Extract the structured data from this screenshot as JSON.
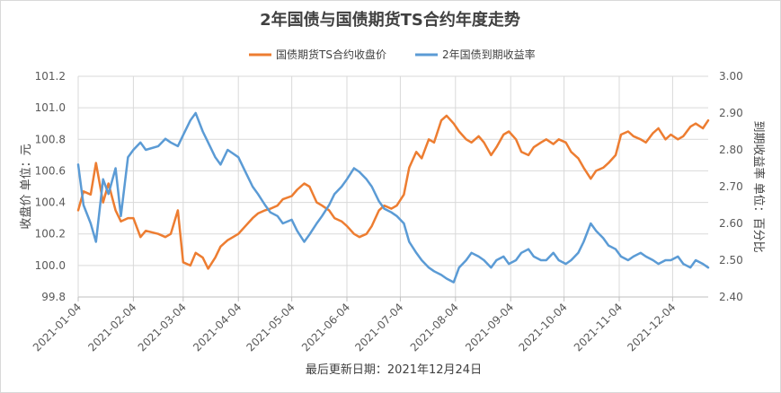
{
  "chart_data": {
    "type": "line",
    "title": "2年国债与国债期货TS合约年度走势",
    "footer": "最后更新日期：2021年12月24日",
    "ylabel_left": "收盘价 单位：元",
    "ylabel_right": "到期收益率 单位：百分比",
    "legend_placement": "top-center",
    "grid": true,
    "xlim": [
      "2021-01-04",
      "2021-12-24"
    ],
    "ylim_left": [
      99.8,
      101.2
    ],
    "ylim_right": [
      2.4,
      3.0
    ],
    "x_ticks": [
      "2021-01-04",
      "2021-02-04",
      "2021-03-04",
      "2021-04-04",
      "2021-05-04",
      "2021-06-04",
      "2021-07-04",
      "2021-08-04",
      "2021-09-04",
      "2021-10-04",
      "2021-11-04",
      "2021-12-04"
    ],
    "y_ticks_left": [
      "99.8",
      "100.0",
      "100.2",
      "100.4",
      "100.6",
      "100.8",
      "101.0",
      "101.2"
    ],
    "y_ticks_right": [
      "2.40",
      "2.50",
      "2.60",
      "2.70",
      "2.80",
      "2.90",
      "3.00"
    ],
    "series": [
      {
        "name": "国债期货TS合约收盘价",
        "axis": "left",
        "color": "#ED7D31",
        "points": [
          [
            "2021-01-04",
            100.35
          ],
          [
            "2021-01-07",
            100.47
          ],
          [
            "2021-01-11",
            100.45
          ],
          [
            "2021-01-14",
            100.65
          ],
          [
            "2021-01-18",
            100.4
          ],
          [
            "2021-01-21",
            100.52
          ],
          [
            "2021-01-25",
            100.35
          ],
          [
            "2021-01-28",
            100.28
          ],
          [
            "2021-02-01",
            100.3
          ],
          [
            "2021-02-04",
            100.3
          ],
          [
            "2021-02-08",
            100.18
          ],
          [
            "2021-02-11",
            100.22
          ],
          [
            "2021-02-18",
            100.2
          ],
          [
            "2021-02-22",
            100.18
          ],
          [
            "2021-02-25",
            100.2
          ],
          [
            "2021-03-01",
            100.35
          ],
          [
            "2021-03-04",
            100.02
          ],
          [
            "2021-03-08",
            100.0
          ],
          [
            "2021-03-11",
            100.08
          ],
          [
            "2021-03-15",
            100.05
          ],
          [
            "2021-03-18",
            99.98
          ],
          [
            "2021-03-22",
            100.05
          ],
          [
            "2021-03-25",
            100.12
          ],
          [
            "2021-03-29",
            100.16
          ],
          [
            "2021-04-01",
            100.18
          ],
          [
            "2021-04-04",
            100.2
          ],
          [
            "2021-04-08",
            100.25
          ],
          [
            "2021-04-12",
            100.3
          ],
          [
            "2021-04-15",
            100.33
          ],
          [
            "2021-04-19",
            100.35
          ],
          [
            "2021-04-22",
            100.36
          ],
          [
            "2021-04-26",
            100.38
          ],
          [
            "2021-04-29",
            100.42
          ],
          [
            "2021-05-04",
            100.44
          ],
          [
            "2021-05-07",
            100.48
          ],
          [
            "2021-05-11",
            100.52
          ],
          [
            "2021-05-14",
            100.5
          ],
          [
            "2021-05-18",
            100.4
          ],
          [
            "2021-05-21",
            100.38
          ],
          [
            "2021-05-25",
            100.35
          ],
          [
            "2021-05-28",
            100.3
          ],
          [
            "2021-06-01",
            100.28
          ],
          [
            "2021-06-04",
            100.25
          ],
          [
            "2021-06-08",
            100.2
          ],
          [
            "2021-06-11",
            100.18
          ],
          [
            "2021-06-15",
            100.2
          ],
          [
            "2021-06-18",
            100.25
          ],
          [
            "2021-06-22",
            100.35
          ],
          [
            "2021-06-25",
            100.38
          ],
          [
            "2021-06-29",
            100.36
          ],
          [
            "2021-07-02",
            100.38
          ],
          [
            "2021-07-06",
            100.45
          ],
          [
            "2021-07-09",
            100.62
          ],
          [
            "2021-07-13",
            100.72
          ],
          [
            "2021-07-16",
            100.68
          ],
          [
            "2021-07-20",
            100.8
          ],
          [
            "2021-07-23",
            100.78
          ],
          [
            "2021-07-27",
            100.92
          ],
          [
            "2021-07-30",
            100.95
          ],
          [
            "2021-08-03",
            100.9
          ],
          [
            "2021-08-06",
            100.85
          ],
          [
            "2021-08-10",
            100.8
          ],
          [
            "2021-08-13",
            100.78
          ],
          [
            "2021-08-17",
            100.82
          ],
          [
            "2021-08-20",
            100.78
          ],
          [
            "2021-08-24",
            100.7
          ],
          [
            "2021-08-27",
            100.75
          ],
          [
            "2021-08-31",
            100.83
          ],
          [
            "2021-09-03",
            100.85
          ],
          [
            "2021-09-07",
            100.8
          ],
          [
            "2021-09-10",
            100.72
          ],
          [
            "2021-09-14",
            100.7
          ],
          [
            "2021-09-17",
            100.75
          ],
          [
            "2021-09-21",
            100.78
          ],
          [
            "2021-09-24",
            100.8
          ],
          [
            "2021-09-28",
            100.77
          ],
          [
            "2021-10-01",
            100.8
          ],
          [
            "2021-10-05",
            100.78
          ],
          [
            "2021-10-08",
            100.72
          ],
          [
            "2021-10-12",
            100.68
          ],
          [
            "2021-10-15",
            100.62
          ],
          [
            "2021-10-19",
            100.55
          ],
          [
            "2021-10-22",
            100.6
          ],
          [
            "2021-10-26",
            100.62
          ],
          [
            "2021-10-29",
            100.65
          ],
          [
            "2021-11-02",
            100.7
          ],
          [
            "2021-11-05",
            100.83
          ],
          [
            "2021-11-09",
            100.85
          ],
          [
            "2021-11-12",
            100.82
          ],
          [
            "2021-11-16",
            100.8
          ],
          [
            "2021-11-19",
            100.78
          ],
          [
            "2021-11-23",
            100.84
          ],
          [
            "2021-11-26",
            100.87
          ],
          [
            "2021-11-30",
            100.8
          ],
          [
            "2021-12-03",
            100.83
          ],
          [
            "2021-12-07",
            100.8
          ],
          [
            "2021-12-10",
            100.82
          ],
          [
            "2021-12-14",
            100.88
          ],
          [
            "2021-12-17",
            100.9
          ],
          [
            "2021-12-21",
            100.87
          ],
          [
            "2021-12-24",
            100.92
          ]
        ]
      },
      {
        "name": "2年国债到期收益率",
        "axis": "right",
        "color": "#5B9BD5",
        "points": [
          [
            "2021-01-04",
            2.76
          ],
          [
            "2021-01-07",
            2.65
          ],
          [
            "2021-01-11",
            2.6
          ],
          [
            "2021-01-14",
            2.55
          ],
          [
            "2021-01-18",
            2.72
          ],
          [
            "2021-01-21",
            2.68
          ],
          [
            "2021-01-25",
            2.75
          ],
          [
            "2021-01-28",
            2.62
          ],
          [
            "2021-02-01",
            2.78
          ],
          [
            "2021-02-04",
            2.8
          ],
          [
            "2021-02-08",
            2.82
          ],
          [
            "2021-02-11",
            2.8
          ],
          [
            "2021-02-18",
            2.81
          ],
          [
            "2021-02-22",
            2.83
          ],
          [
            "2021-02-25",
            2.82
          ],
          [
            "2021-03-01",
            2.81
          ],
          [
            "2021-03-04",
            2.84
          ],
          [
            "2021-03-08",
            2.88
          ],
          [
            "2021-03-11",
            2.9
          ],
          [
            "2021-03-15",
            2.85
          ],
          [
            "2021-03-18",
            2.82
          ],
          [
            "2021-03-22",
            2.78
          ],
          [
            "2021-03-25",
            2.76
          ],
          [
            "2021-03-29",
            2.8
          ],
          [
            "2021-04-01",
            2.79
          ],
          [
            "2021-04-04",
            2.78
          ],
          [
            "2021-04-08",
            2.74
          ],
          [
            "2021-04-12",
            2.7
          ],
          [
            "2021-04-15",
            2.68
          ],
          [
            "2021-04-19",
            2.65
          ],
          [
            "2021-04-22",
            2.63
          ],
          [
            "2021-04-26",
            2.62
          ],
          [
            "2021-04-29",
            2.6
          ],
          [
            "2021-05-04",
            2.61
          ],
          [
            "2021-05-07",
            2.58
          ],
          [
            "2021-05-11",
            2.55
          ],
          [
            "2021-05-14",
            2.57
          ],
          [
            "2021-05-18",
            2.6
          ],
          [
            "2021-05-21",
            2.62
          ],
          [
            "2021-05-25",
            2.65
          ],
          [
            "2021-05-28",
            2.68
          ],
          [
            "2021-06-01",
            2.7
          ],
          [
            "2021-06-04",
            2.72
          ],
          [
            "2021-06-08",
            2.75
          ],
          [
            "2021-06-11",
            2.74
          ],
          [
            "2021-06-15",
            2.72
          ],
          [
            "2021-06-18",
            2.7
          ],
          [
            "2021-06-22",
            2.66
          ],
          [
            "2021-06-25",
            2.64
          ],
          [
            "2021-06-29",
            2.63
          ],
          [
            "2021-07-02",
            2.62
          ],
          [
            "2021-07-06",
            2.6
          ],
          [
            "2021-07-09",
            2.55
          ],
          [
            "2021-07-13",
            2.52
          ],
          [
            "2021-07-16",
            2.5
          ],
          [
            "2021-07-20",
            2.48
          ],
          [
            "2021-07-23",
            2.47
          ],
          [
            "2021-07-27",
            2.46
          ],
          [
            "2021-07-30",
            2.45
          ],
          [
            "2021-08-03",
            2.44
          ],
          [
            "2021-08-06",
            2.48
          ],
          [
            "2021-08-10",
            2.5
          ],
          [
            "2021-08-13",
            2.52
          ],
          [
            "2021-08-17",
            2.51
          ],
          [
            "2021-08-20",
            2.5
          ],
          [
            "2021-08-24",
            2.48
          ],
          [
            "2021-08-27",
            2.5
          ],
          [
            "2021-08-31",
            2.51
          ],
          [
            "2021-09-03",
            2.49
          ],
          [
            "2021-09-07",
            2.5
          ],
          [
            "2021-09-10",
            2.52
          ],
          [
            "2021-09-14",
            2.53
          ],
          [
            "2021-09-17",
            2.51
          ],
          [
            "2021-09-21",
            2.5
          ],
          [
            "2021-09-24",
            2.5
          ],
          [
            "2021-09-28",
            2.52
          ],
          [
            "2021-10-01",
            2.5
          ],
          [
            "2021-10-05",
            2.49
          ],
          [
            "2021-10-08",
            2.5
          ],
          [
            "2021-10-12",
            2.52
          ],
          [
            "2021-10-15",
            2.55
          ],
          [
            "2021-10-19",
            2.6
          ],
          [
            "2021-10-22",
            2.58
          ],
          [
            "2021-10-26",
            2.56
          ],
          [
            "2021-10-29",
            2.54
          ],
          [
            "2021-11-02",
            2.53
          ],
          [
            "2021-11-05",
            2.51
          ],
          [
            "2021-11-09",
            2.5
          ],
          [
            "2021-11-12",
            2.51
          ],
          [
            "2021-11-16",
            2.52
          ],
          [
            "2021-11-19",
            2.51
          ],
          [
            "2021-11-23",
            2.5
          ],
          [
            "2021-11-26",
            2.49
          ],
          [
            "2021-11-30",
            2.5
          ],
          [
            "2021-12-03",
            2.5
          ],
          [
            "2021-12-07",
            2.51
          ],
          [
            "2021-12-10",
            2.49
          ],
          [
            "2021-12-14",
            2.48
          ],
          [
            "2021-12-17",
            2.5
          ],
          [
            "2021-12-21",
            2.49
          ],
          [
            "2021-12-24",
            2.48
          ]
        ]
      }
    ]
  }
}
